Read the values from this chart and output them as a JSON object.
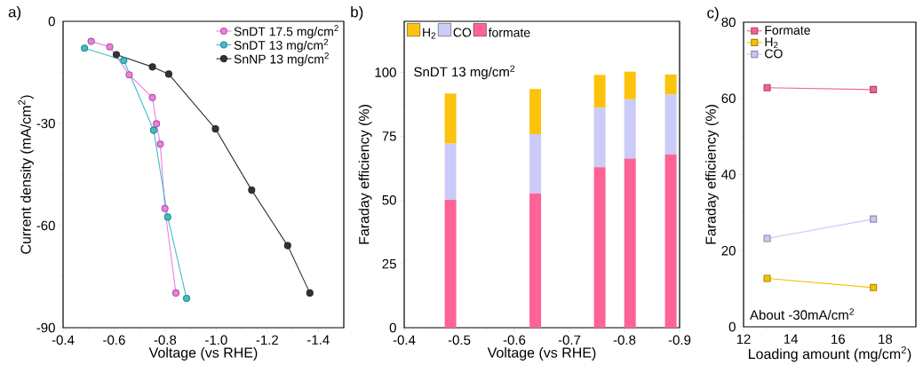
{
  "chart_data": [
    {
      "type": "line",
      "xlabel": "Voltage (vs RHE)",
      "ylabel": "Current density (mA/cm$^{2}$)",
      "xlim": [
        -0.4,
        -1.5
      ],
      "ylim": [
        -90,
        0
      ],
      "xticks": [
        -0.4,
        -0.6,
        -0.8,
        {
          "value": -1.0,
          "label": "-1.0"
        },
        -1.2,
        -1.4
      ],
      "yticks": [
        -90,
        -60,
        -30,
        0
      ],
      "legend": "top right",
      "marker": "circle",
      "annotations": [
        "a)"
      ],
      "series": [
        {
          "name": "SnDT 17.5 mg/cm$^{2}$",
          "color": "#f07ee6",
          "x": [
            -0.51,
            -0.583,
            -0.659,
            -0.75,
            -0.766,
            -0.781,
            -0.799,
            -0.842
          ],
          "values": [
            -5.9,
            -7.5,
            -15.7,
            -22.4,
            -30.1,
            -36.1,
            -55.0,
            -79.8
          ]
        },
        {
          "name": "SnDT 13 mg/cm$^{2}$",
          "color": "#3ebfc6",
          "x": [
            -0.484,
            -0.638,
            -0.755,
            -0.81,
            -0.884
          ],
          "values": [
            -7.9,
            -11.5,
            -32.0,
            -57.5,
            -81.4
          ]
        },
        {
          "name": "SnNP 13 mg/cm$^{2}$",
          "color": "#333333",
          "x": [
            -0.609,
            -0.75,
            -0.814,
            -0.997,
            -1.139,
            -1.28,
            -1.367
          ],
          "values": [
            -9.8,
            -13.4,
            -15.5,
            -31.6,
            -49.6,
            -65.9,
            -79.8
          ]
        }
      ]
    },
    {
      "type": "bar",
      "stacked": true,
      "xlabel": "Voltage (vs RHE)",
      "ylabel": "Faraday efficiency (%)",
      "xlim": [
        -0.4,
        -0.9
      ],
      "ylim": [
        0,
        120
      ],
      "xticks": [
        -0.4,
        -0.5,
        -0.6,
        -0.7,
        -0.8,
        -0.9
      ],
      "yticks": [
        0,
        25,
        50,
        75,
        100
      ],
      "legend": "top left",
      "annotations": [
        "b)",
        "SnDT 13 mg/cm$^{2}$"
      ],
      "x": [
        -0.484,
        -0.638,
        -0.755,
        -0.81,
        -0.884
      ],
      "series": [
        {
          "name": "formate",
          "color": "#fd6396",
          "values": [
            50.1,
            52.6,
            62.9,
            66.3,
            67.8
          ]
        },
        {
          "name": "CO",
          "color": "#cbcbf7",
          "values": [
            22.0,
            23.2,
            23.3,
            23.2,
            23.5
          ]
        },
        {
          "name": "H$_{2}$",
          "color": "#fcc30c",
          "values": [
            19.6,
            17.7,
            12.8,
            10.8,
            7.9
          ]
        }
      ]
    },
    {
      "type": "line",
      "xlabel": "Loading amount (mg/cm$^{2}$)",
      "ylabel": "Faraday efficiency (%)",
      "xlim": [
        12,
        19.3
      ],
      "ylim": [
        0,
        80
      ],
      "xticks": [
        12,
        14,
        16,
        18
      ],
      "yticks": [
        0,
        20,
        40,
        60,
        80
      ],
      "legend": "top left",
      "marker": "square",
      "annotations": [
        "c)",
        "About -30mA/cm$^{2}$"
      ],
      "x": [
        13,
        17.5
      ],
      "series": [
        {
          "name": "Formate",
          "color": "#f2648f",
          "values": [
            62.8,
            62.3
          ]
        },
        {
          "name": "H$_{2}$",
          "color": "#f7c100",
          "values": [
            12.7,
            10.3
          ]
        },
        {
          "name": "CO",
          "color": "#c8c8f5",
          "values": [
            23.2,
            28.3
          ]
        }
      ]
    }
  ]
}
